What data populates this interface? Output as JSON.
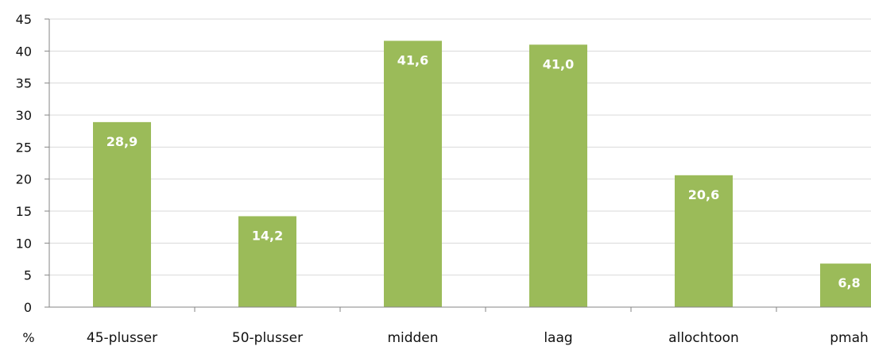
{
  "chart_data": {
    "type": "bar",
    "categories": [
      "45-plusser",
      "50-plusser",
      "midden",
      "laag",
      "allochtoon",
      "pmah"
    ],
    "values": [
      28.9,
      14.2,
      41.6,
      41.0,
      20.6,
      6.8
    ],
    "data_labels": [
      "28,9",
      "14,2",
      "41,6",
      "41,0",
      "20,6",
      "6,8"
    ],
    "yticks": [
      "0",
      "5",
      "10",
      "15",
      "20",
      "25",
      "30",
      "35",
      "40",
      "45"
    ],
    "ylim": [
      0,
      45
    ],
    "unit_label": "%",
    "grid": true,
    "legend": "none",
    "bar_color": "#9bbb59",
    "grid_color": "#d9d9d9",
    "axis_color": "#868686"
  }
}
